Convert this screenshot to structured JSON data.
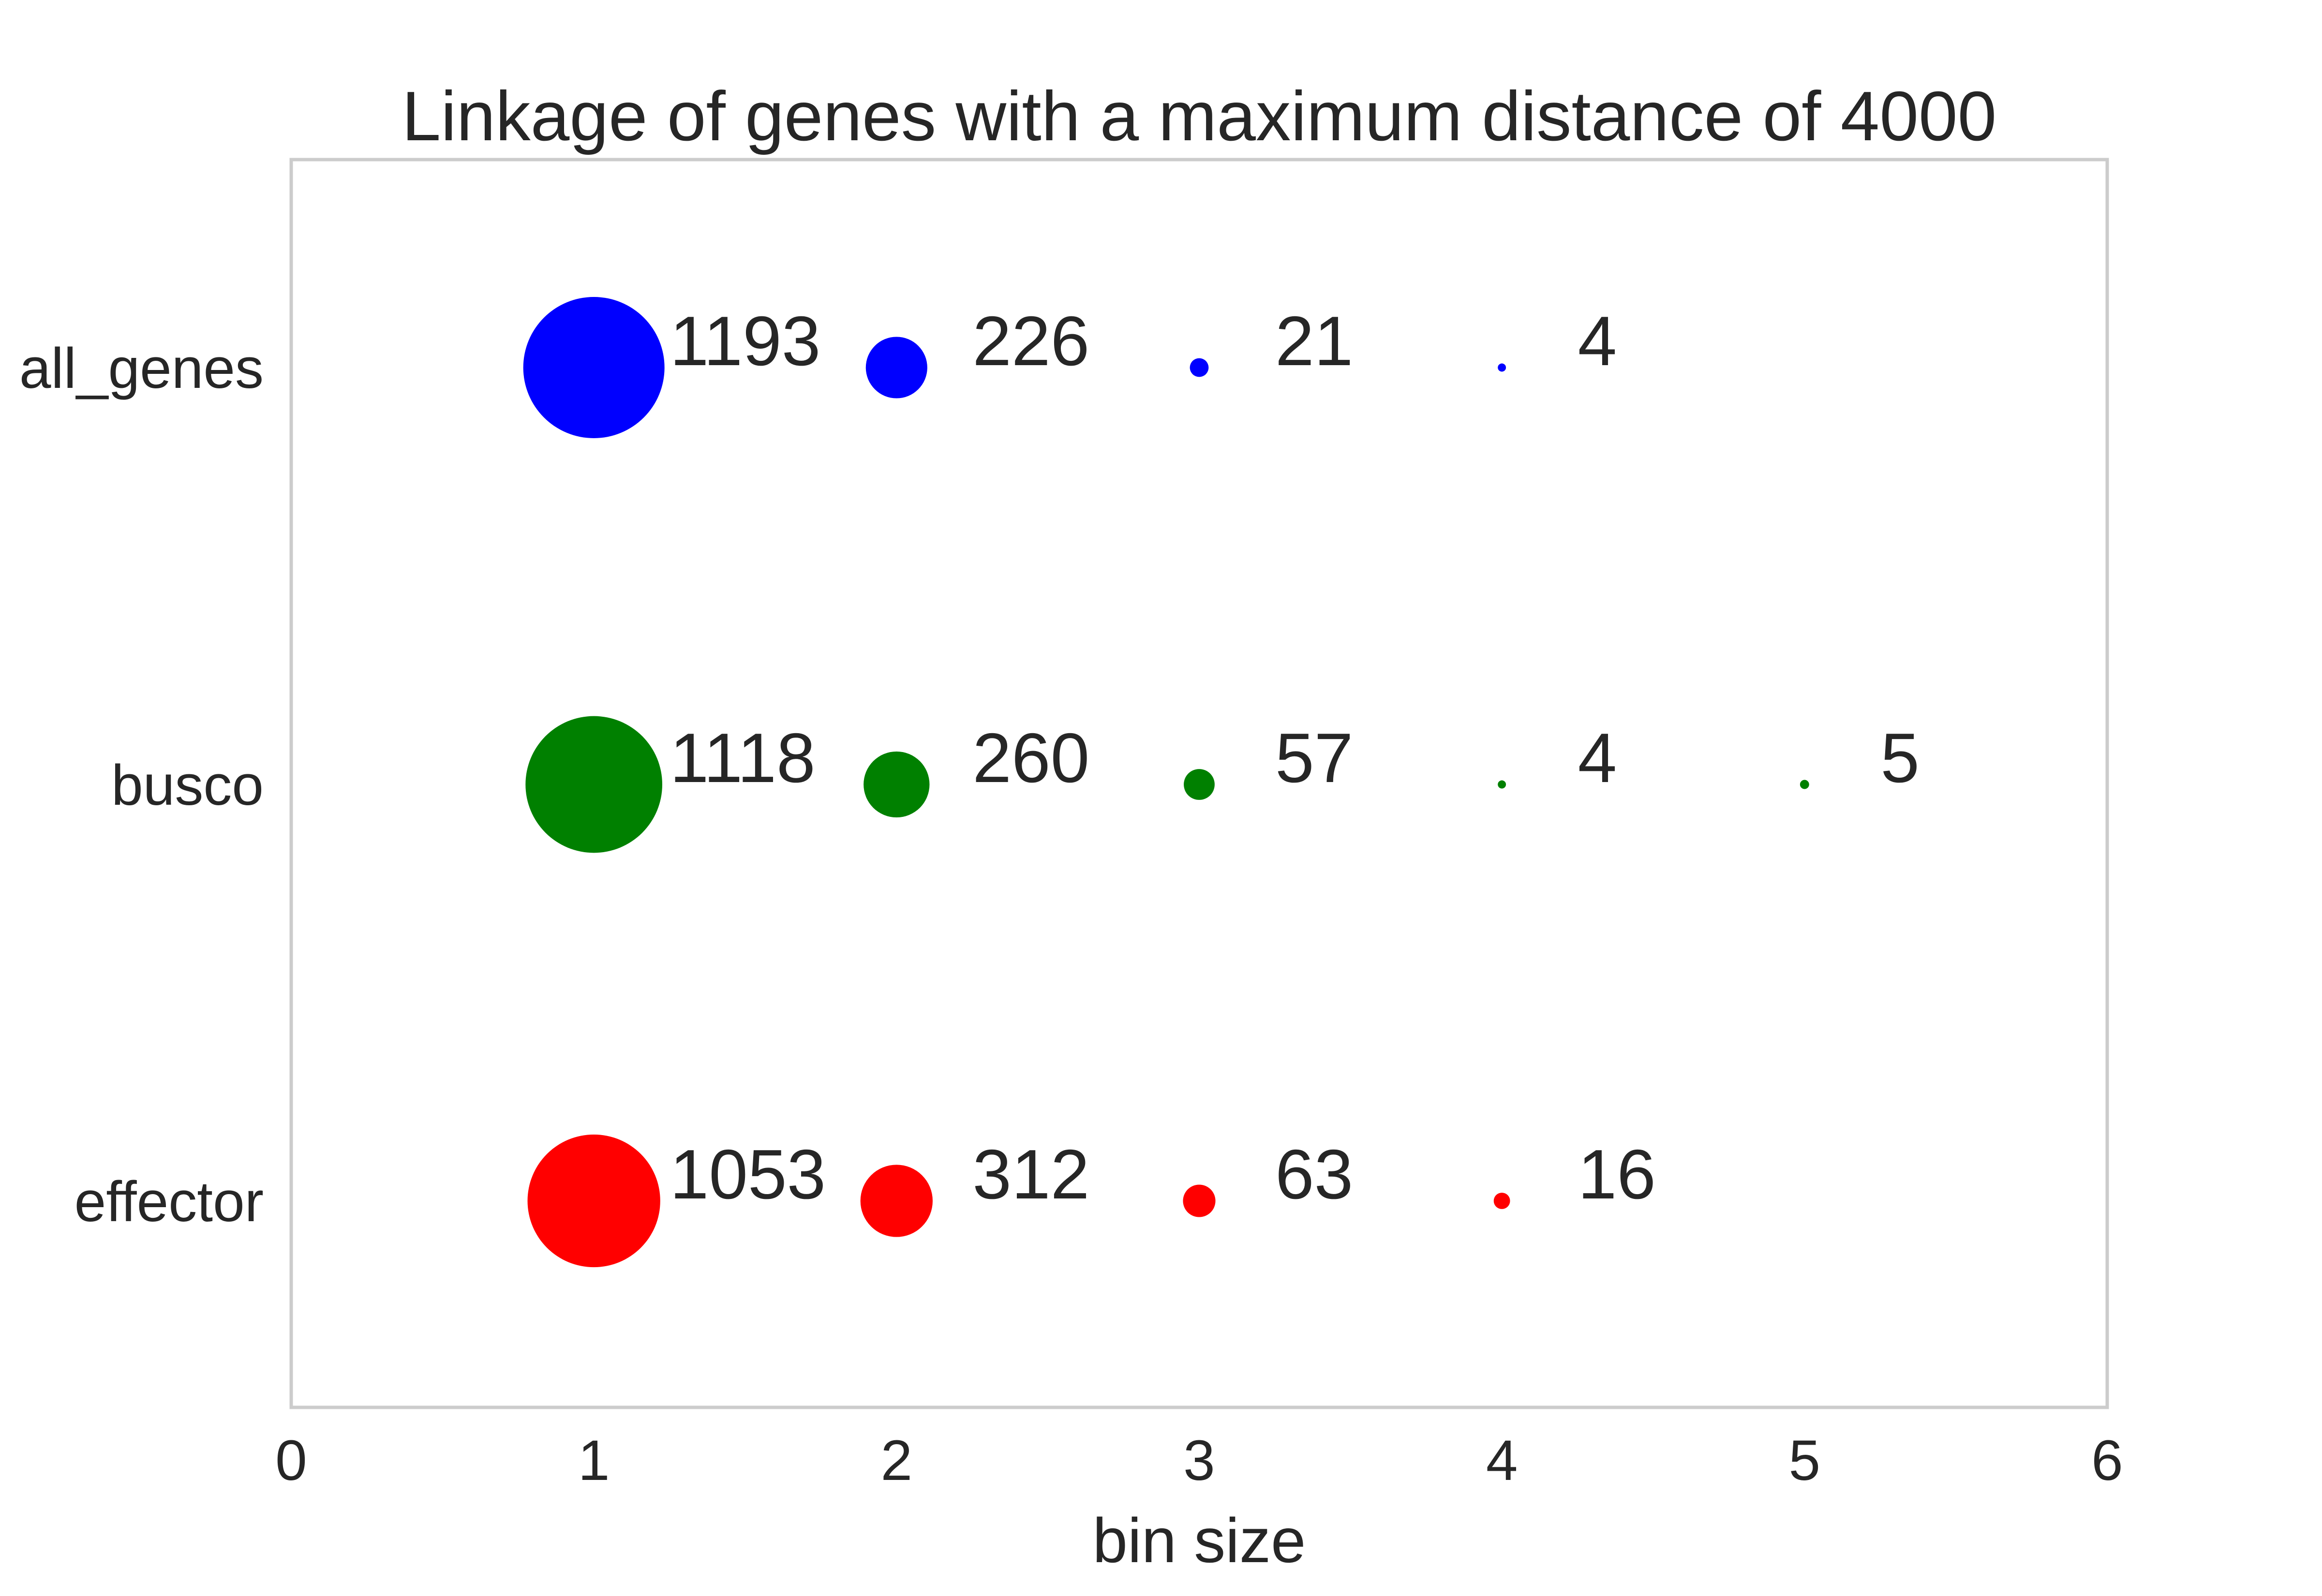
{
  "chart_data": {
    "type": "scatter",
    "title": "Linkage of genes with a maximum distance of 4000",
    "xlabel": "bin size",
    "ylabel": "",
    "xlim": [
      0,
      6
    ],
    "xticks": [
      "0",
      "1",
      "2",
      "3",
      "4",
      "5",
      "6"
    ],
    "grid": false,
    "legend": "none",
    "categories": [
      "all_genes",
      "busco",
      "effector"
    ],
    "series": [
      {
        "name": "all_genes",
        "color": "#0000ff",
        "points": [
          {
            "x": 1,
            "count": 1193,
            "label": "1193"
          },
          {
            "x": 2,
            "count": 226,
            "label": "226"
          },
          {
            "x": 3,
            "count": 21,
            "label": "21"
          },
          {
            "x": 4,
            "count": 4,
            "label": "4"
          }
        ]
      },
      {
        "name": "busco",
        "color": "#008000",
        "points": [
          {
            "x": 1,
            "count": 1118,
            "label": "1118"
          },
          {
            "x": 2,
            "count": 260,
            "label": "260"
          },
          {
            "x": 3,
            "count": 57,
            "label": "57"
          },
          {
            "x": 4,
            "count": 4,
            "label": "4"
          },
          {
            "x": 5,
            "count": 5,
            "label": "5"
          }
        ]
      },
      {
        "name": "effector",
        "color": "#ff0000",
        "points": [
          {
            "x": 1,
            "count": 1053,
            "label": "1053"
          },
          {
            "x": 2,
            "count": 312,
            "label": "312"
          },
          {
            "x": 3,
            "count": 63,
            "label": "63"
          },
          {
            "x": 4,
            "count": 16,
            "label": "16"
          }
        ]
      }
    ]
  }
}
